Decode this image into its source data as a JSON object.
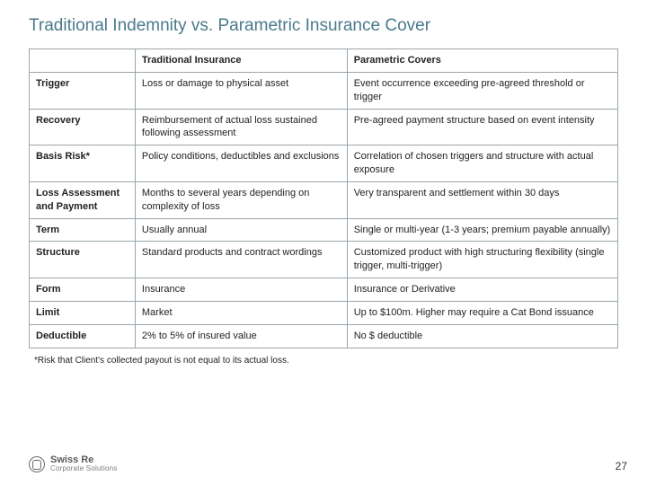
{
  "title": "Traditional Indemnity vs. Parametric Insurance Cover",
  "table": {
    "columns": [
      "",
      "Traditional Insurance",
      "Parametric Covers"
    ],
    "col_widths_pct": [
      18,
      36,
      46
    ],
    "border_color": "#9aa5ab",
    "header_fontweight": 700,
    "cell_fontsize": 11,
    "rows": [
      {
        "label": "Trigger",
        "trad": "Loss or damage to physical asset",
        "param": "Event occurrence exceeding pre-agreed threshold or trigger"
      },
      {
        "label": "Recovery",
        "trad": "Reimbursement of actual loss sustained following assessment",
        "param": "Pre-agreed payment structure based on event intensity"
      },
      {
        "label": "Basis Risk*",
        "trad": "Policy conditions, deductibles and exclusions",
        "param": "Correlation of chosen triggers and structure with actual exposure"
      },
      {
        "label": "Loss Assessment and Payment",
        "trad": "Months to several years depending on complexity of loss",
        "param": "Very transparent and settlement within 30 days"
      },
      {
        "label": "Term",
        "trad": "Usually annual",
        "param": "Single or multi-year (1-3 years; premium payable annually)"
      },
      {
        "label": "Structure",
        "trad": "Standard products and contract wordings",
        "param": "Customized product with high structuring flexibility (single trigger, multi-trigger)"
      },
      {
        "label": "Form",
        "trad": "Insurance",
        "param": "Insurance or Derivative"
      },
      {
        "label": "Limit",
        "trad": "Market",
        "param": "Up to $100m. Higher may require a Cat Bond issuance"
      },
      {
        "label": "Deductible",
        "trad": "2% to 5% of insured value",
        "param": "No $ deductible"
      }
    ]
  },
  "footnote": "*Risk that Client's collected payout is not equal to its actual loss.",
  "logo": {
    "brand": "Swiss Re",
    "sub": "Corporate Solutions"
  },
  "page_number": "27",
  "colors": {
    "title": "#4a7a8c",
    "text": "#222222",
    "border": "#9aa5ab",
    "background": "#ffffff",
    "logo": "#6a6a6a"
  },
  "typography": {
    "title_fontsize": 19,
    "cell_fontsize": 11,
    "footnote_fontsize": 10,
    "pagenum_fontsize": 12,
    "font_family": "Arial"
  }
}
